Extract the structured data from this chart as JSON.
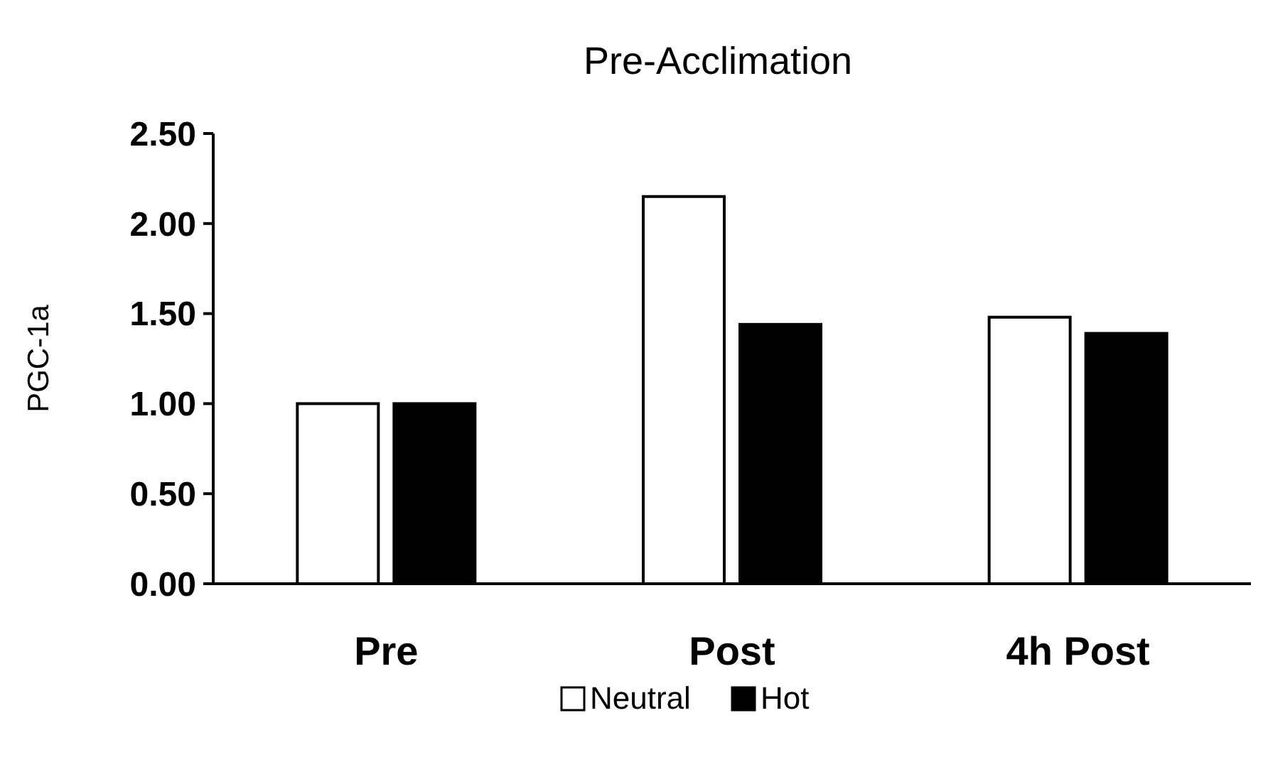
{
  "chart_data": {
    "type": "bar",
    "title": "Pre-Acclimation",
    "ylabel": "PGC-1a",
    "categories": [
      "Pre",
      "Post",
      "4h Post"
    ],
    "series": [
      {
        "name": "Neutral",
        "color": "#ffffff",
        "values": [
          1.0,
          2.15,
          1.48
        ]
      },
      {
        "name": "Hot",
        "color": "#000000",
        "values": [
          1.0,
          1.44,
          1.39
        ]
      }
    ],
    "ylim": [
      0,
      2.5
    ],
    "yticks": [
      {
        "value": 0,
        "label": "0.00"
      },
      {
        "value": 0.5,
        "label": "0.50"
      },
      {
        "value": 1,
        "label": "1.00"
      },
      {
        "value": 1.5,
        "label": "1.50"
      },
      {
        "value": 2,
        "label": "2.00"
      },
      {
        "value": 2.5,
        "label": "2.50"
      }
    ],
    "grid": false,
    "legend": "bottom"
  }
}
